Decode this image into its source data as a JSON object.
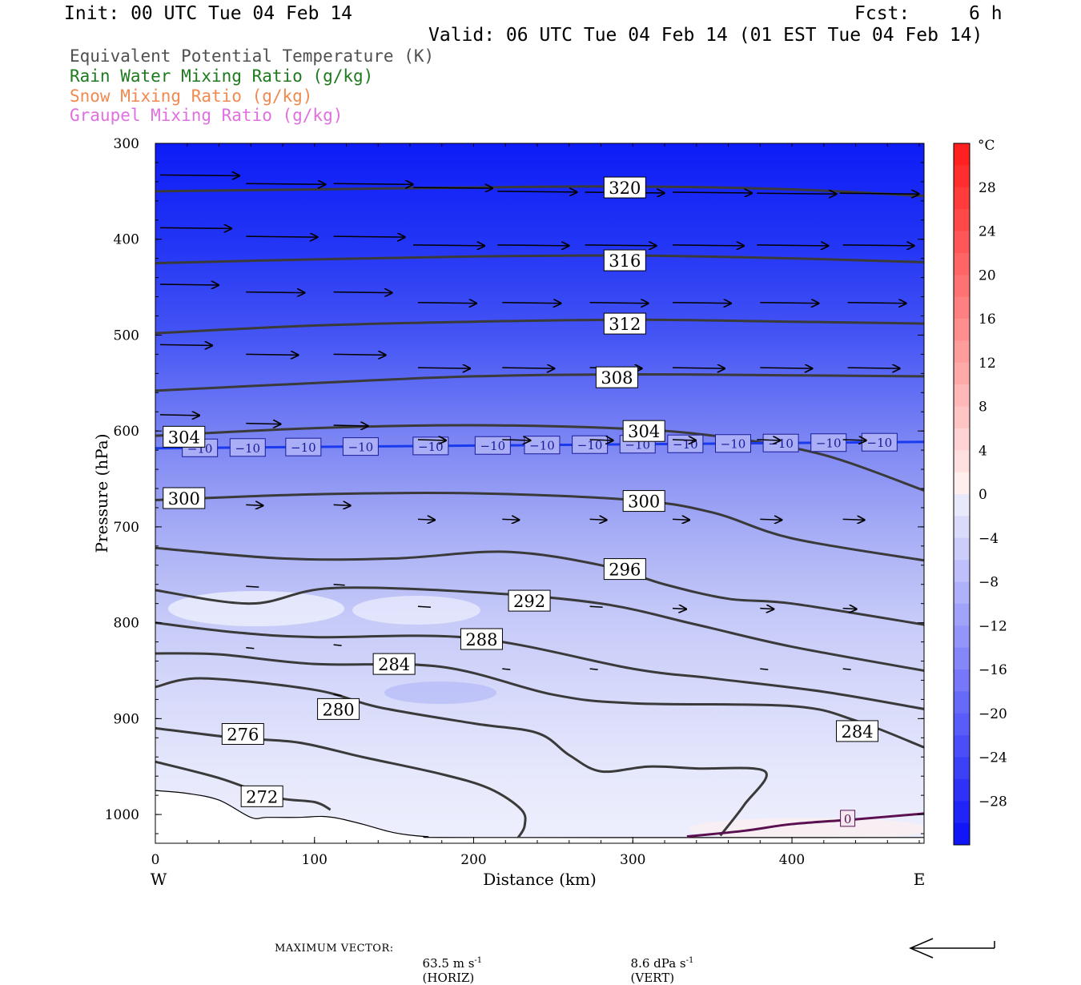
{
  "header": {
    "init": "Init: 00 UTC Tue 04 Feb 14",
    "fcst_label": "Fcst:",
    "fcst_value": "6 h",
    "valid": "Valid: 06 UTC Tue 04 Feb 14 (01 EST Tue 04 Feb 14)"
  },
  "field_titles": [
    {
      "text": "Equivalent Potential Temperature (K)",
      "color": "#505050"
    },
    {
      "text": "Rain Water Mixing Ratio (g/kg)",
      "color": "#1e7a1e"
    },
    {
      "text": "Snow Mixing Ratio (g/kg)",
      "color": "#f08a50"
    },
    {
      "text": "Graupel Mixing Ratio (g/kg)",
      "color": "#e070e0"
    }
  ],
  "footer": {
    "max_vector_label": "MAXIMUM VECTOR:",
    "horiz_value": "63.5 m s",
    "horiz_exp": "-1",
    "horiz_tag": "(HORIZ)",
    "vert_value": "8.6 dPa s",
    "vert_exp": "-1",
    "vert_tag": "(VERT)"
  },
  "chart_data": {
    "type": "heatmap",
    "xlabel": "Distance (km)",
    "ylabel": "Pressure (hPa)",
    "x_ticks": [
      0,
      100,
      200,
      300,
      400
    ],
    "x_max": 483,
    "y_ticks": [
      300,
      400,
      500,
      600,
      700,
      800,
      900,
      1000
    ],
    "y_range": [
      300,
      1030
    ],
    "left_end_label": "W",
    "right_end_label": "E",
    "colorbar": {
      "unit": "°C",
      "ticks": [
        28,
        24,
        20,
        16,
        12,
        8,
        4,
        0,
        -4,
        -8,
        -12,
        -16,
        -20,
        -24,
        -28
      ],
      "range": [
        -32,
        32
      ]
    },
    "theta_e_contours": [
      {
        "value": 320,
        "points": [
          [
            0,
            350
          ],
          [
            100,
            348
          ],
          [
            200,
            346
          ],
          [
            300,
            345
          ],
          [
            400,
            348
          ],
          [
            483,
            355
          ]
        ],
        "labels": [
          {
            "x": 295,
            "p": 346
          }
        ]
      },
      {
        "value": 316,
        "points": [
          [
            0,
            425
          ],
          [
            100,
            421
          ],
          [
            200,
            418
          ],
          [
            300,
            417
          ],
          [
            400,
            420
          ],
          [
            483,
            424
          ]
        ],
        "labels": [
          {
            "x": 295,
            "p": 422
          }
        ]
      },
      {
        "value": 312,
        "points": [
          [
            0,
            498
          ],
          [
            100,
            490
          ],
          [
            200,
            486
          ],
          [
            300,
            484
          ],
          [
            400,
            486
          ],
          [
            483,
            488
          ]
        ],
        "labels": [
          {
            "x": 295,
            "p": 488
          }
        ]
      },
      {
        "value": 308,
        "points": [
          [
            0,
            558
          ],
          [
            100,
            550
          ],
          [
            200,
            543
          ],
          [
            300,
            541
          ],
          [
            400,
            542
          ],
          [
            483,
            543
          ]
        ],
        "labels": [
          {
            "x": 290,
            "p": 544
          }
        ]
      },
      {
        "value": 304,
        "points": [
          [
            0,
            605
          ],
          [
            100,
            597
          ],
          [
            200,
            594
          ],
          [
            300,
            598
          ],
          [
            360,
            607
          ],
          [
            420,
            625
          ],
          [
            483,
            662
          ]
        ],
        "labels": [
          {
            "x": 18,
            "p": 606
          },
          {
            "x": 307,
            "p": 600
          }
        ]
      },
      {
        "value": 300,
        "points": [
          [
            0,
            672
          ],
          [
            100,
            666
          ],
          [
            200,
            665
          ],
          [
            300,
            672
          ],
          [
            350,
            685
          ],
          [
            400,
            712
          ],
          [
            483,
            735
          ]
        ],
        "labels": [
          {
            "x": 18,
            "p": 670
          },
          {
            "x": 307,
            "p": 673
          }
        ]
      },
      {
        "value": 296,
        "points": [
          [
            0,
            722
          ],
          [
            80,
            733
          ],
          [
            150,
            733
          ],
          [
            220,
            726
          ],
          [
            280,
            740
          ],
          [
            320,
            760
          ],
          [
            360,
            775
          ],
          [
            400,
            780
          ],
          [
            483,
            802
          ]
        ],
        "labels": [
          {
            "x": 295,
            "p": 744
          }
        ]
      },
      {
        "value": 292,
        "points": [
          [
            0,
            766
          ],
          [
            60,
            780
          ],
          [
            110,
            764
          ],
          [
            200,
            768
          ],
          [
            280,
            780
          ],
          [
            340,
            802
          ],
          [
            400,
            825
          ],
          [
            483,
            850
          ]
        ],
        "labels": [
          {
            "x": 235,
            "p": 777
          }
        ]
      },
      {
        "value": 288,
        "points": [
          [
            0,
            800
          ],
          [
            50,
            810
          ],
          [
            100,
            815
          ],
          [
            200,
            816
          ],
          [
            300,
            848
          ],
          [
            350,
            858
          ],
          [
            420,
            872
          ],
          [
            483,
            890
          ]
        ],
        "labels": [
          {
            "x": 205,
            "p": 817
          }
        ]
      },
      {
        "value": 284,
        "points": [
          [
            0,
            832
          ],
          [
            40,
            833
          ],
          [
            100,
            843
          ],
          [
            180,
            846
          ],
          [
            250,
            875
          ],
          [
            300,
            884
          ],
          [
            400,
            887
          ],
          [
            440,
            902
          ],
          [
            483,
            930
          ]
        ],
        "labels": [
          {
            "x": 150,
            "p": 843
          },
          {
            "x": 441,
            "p": 913
          }
        ]
      },
      {
        "value": 280,
        "points": [
          [
            0,
            867
          ],
          [
            30,
            858
          ],
          [
            100,
            870
          ],
          [
            140,
            888
          ],
          [
            200,
            905
          ],
          [
            240,
            915
          ],
          [
            260,
            938
          ],
          [
            280,
            955
          ],
          [
            310,
            950
          ],
          [
            340,
            952
          ],
          [
            383,
            955
          ],
          [
            370,
            990
          ],
          [
            355,
            1022
          ]
        ],
        "labels": [
          {
            "x": 115,
            "p": 890
          }
        ]
      },
      {
        "value": 276,
        "points": [
          [
            0,
            910
          ],
          [
            50,
            920
          ],
          [
            90,
            925
          ],
          [
            130,
            940
          ],
          [
            180,
            958
          ],
          [
            210,
            973
          ],
          [
            230,
            995
          ],
          [
            232,
            1012
          ],
          [
            228,
            1024
          ]
        ],
        "labels": [
          {
            "x": 55,
            "p": 916
          }
        ]
      },
      {
        "value": 272,
        "points": [
          [
            0,
            945
          ],
          [
            40,
            962
          ],
          [
            75,
            982
          ],
          [
            100,
            987
          ],
          [
            110,
            995
          ]
        ],
        "labels": [
          {
            "x": 67,
            "p": 981
          }
        ]
      }
    ],
    "isotherm": {
      "value": -10,
      "p": 613,
      "label_x": [
        28,
        58,
        93,
        129,
        173,
        212,
        243,
        273,
        303,
        333,
        363,
        393,
        423,
        455
      ],
      "label_text": "−10"
    },
    "zero_isotherm": {
      "value": 0,
      "points": [
        [
          334,
          1023
        ],
        [
          370,
          1017
        ],
        [
          400,
          1010
        ],
        [
          440,
          1005
        ],
        [
          483,
          999
        ]
      ],
      "label": {
        "x": 435,
        "p": 1004
      }
    },
    "terrain_outline": [
      [
        0,
        975
      ],
      [
        20,
        978
      ],
      [
        40,
        985
      ],
      [
        60,
        1003
      ],
      [
        70,
        1003
      ],
      [
        90,
        1003
      ],
      [
        105,
        1002
      ],
      [
        115,
        1004
      ],
      [
        130,
        1010
      ],
      [
        150,
        1019
      ],
      [
        170,
        1023
      ],
      [
        200,
        1024
      ],
      [
        483,
        1024
      ]
    ],
    "wind_arrows": [
      {
        "x": 3,
        "p": 333,
        "len": 50
      },
      {
        "x": 57,
        "p": 342,
        "len": 50
      },
      {
        "x": 112,
        "p": 342,
        "len": 50
      },
      {
        "x": 162,
        "p": 346,
        "len": 50
      },
      {
        "x": 215,
        "p": 350,
        "len": 50
      },
      {
        "x": 270,
        "p": 351,
        "len": 50
      },
      {
        "x": 325,
        "p": 351,
        "len": 50
      },
      {
        "x": 378,
        "p": 352,
        "len": 50
      },
      {
        "x": 430,
        "p": 352,
        "len": 50
      },
      {
        "x": 3,
        "p": 388,
        "len": 45
      },
      {
        "x": 57,
        "p": 397,
        "len": 45
      },
      {
        "x": 112,
        "p": 397,
        "len": 45
      },
      {
        "x": 162,
        "p": 406,
        "len": 45
      },
      {
        "x": 215,
        "p": 406,
        "len": 45
      },
      {
        "x": 270,
        "p": 406,
        "len": 45
      },
      {
        "x": 325,
        "p": 406,
        "len": 45
      },
      {
        "x": 378,
        "p": 406,
        "len": 45
      },
      {
        "x": 432,
        "p": 406,
        "len": 45
      },
      {
        "x": 3,
        "p": 447,
        "len": 37
      },
      {
        "x": 57,
        "p": 455,
        "len": 37
      },
      {
        "x": 112,
        "p": 455,
        "len": 37
      },
      {
        "x": 165,
        "p": 466,
        "len": 37
      },
      {
        "x": 218,
        "p": 466,
        "len": 37
      },
      {
        "x": 273,
        "p": 466,
        "len": 37
      },
      {
        "x": 325,
        "p": 466,
        "len": 37
      },
      {
        "x": 380,
        "p": 466,
        "len": 37
      },
      {
        "x": 435,
        "p": 466,
        "len": 37
      },
      {
        "x": 3,
        "p": 510,
        "len": 33
      },
      {
        "x": 57,
        "p": 520,
        "len": 33
      },
      {
        "x": 112,
        "p": 520,
        "len": 33
      },
      {
        "x": 165,
        "p": 534,
        "len": 33
      },
      {
        "x": 218,
        "p": 534,
        "len": 33
      },
      {
        "x": 273,
        "p": 534,
        "len": 33
      },
      {
        "x": 325,
        "p": 534,
        "len": 33
      },
      {
        "x": 380,
        "p": 534,
        "len": 33
      },
      {
        "x": 435,
        "p": 534,
        "len": 33
      },
      {
        "x": 3,
        "p": 583,
        "len": 25
      },
      {
        "x": 57,
        "p": 592,
        "len": 22
      },
      {
        "x": 112,
        "p": 594,
        "len": 22
      },
      {
        "x": 165,
        "p": 609,
        "len": 18
      },
      {
        "x": 218,
        "p": 609,
        "len": 18
      },
      {
        "x": 273,
        "p": 609,
        "len": 15
      },
      {
        "x": 325,
        "p": 609,
        "len": 15
      },
      {
        "x": 378,
        "p": 609,
        "len": 15
      },
      {
        "x": 432,
        "p": 609,
        "len": 15
      },
      {
        "x": 57,
        "p": 677,
        "len": 11
      },
      {
        "x": 112,
        "p": 677,
        "len": 11
      },
      {
        "x": 165,
        "p": 692,
        "len": 11
      },
      {
        "x": 218,
        "p": 692,
        "len": 11
      },
      {
        "x": 273,
        "p": 692,
        "len": 11
      },
      {
        "x": 325,
        "p": 692,
        "len": 11
      },
      {
        "x": 380,
        "p": 692,
        "len": 14
      },
      {
        "x": 432,
        "p": 692,
        "len": 14
      },
      {
        "x": 57,
        "p": 762,
        "len": 8
      },
      {
        "x": 112,
        "p": 760,
        "len": 7
      },
      {
        "x": 165,
        "p": 783,
        "len": 8
      },
      {
        "x": 273,
        "p": 783,
        "len": 8
      },
      {
        "x": 325,
        "p": 785,
        "len": 9
      },
      {
        "x": 380,
        "p": 785,
        "len": 9
      },
      {
        "x": 432,
        "p": 785,
        "len": 9
      },
      {
        "x": 57,
        "p": 826,
        "len": 5
      },
      {
        "x": 112,
        "p": 823,
        "len": 5
      },
      {
        "x": 218,
        "p": 848,
        "len": 5
      },
      {
        "x": 273,
        "p": 848,
        "len": 5
      },
      {
        "x": 380,
        "p": 848,
        "len": 5
      },
      {
        "x": 432,
        "p": 848,
        "len": 5
      },
      {
        "x": 112,
        "p": 875,
        "len": 5
      }
    ]
  }
}
